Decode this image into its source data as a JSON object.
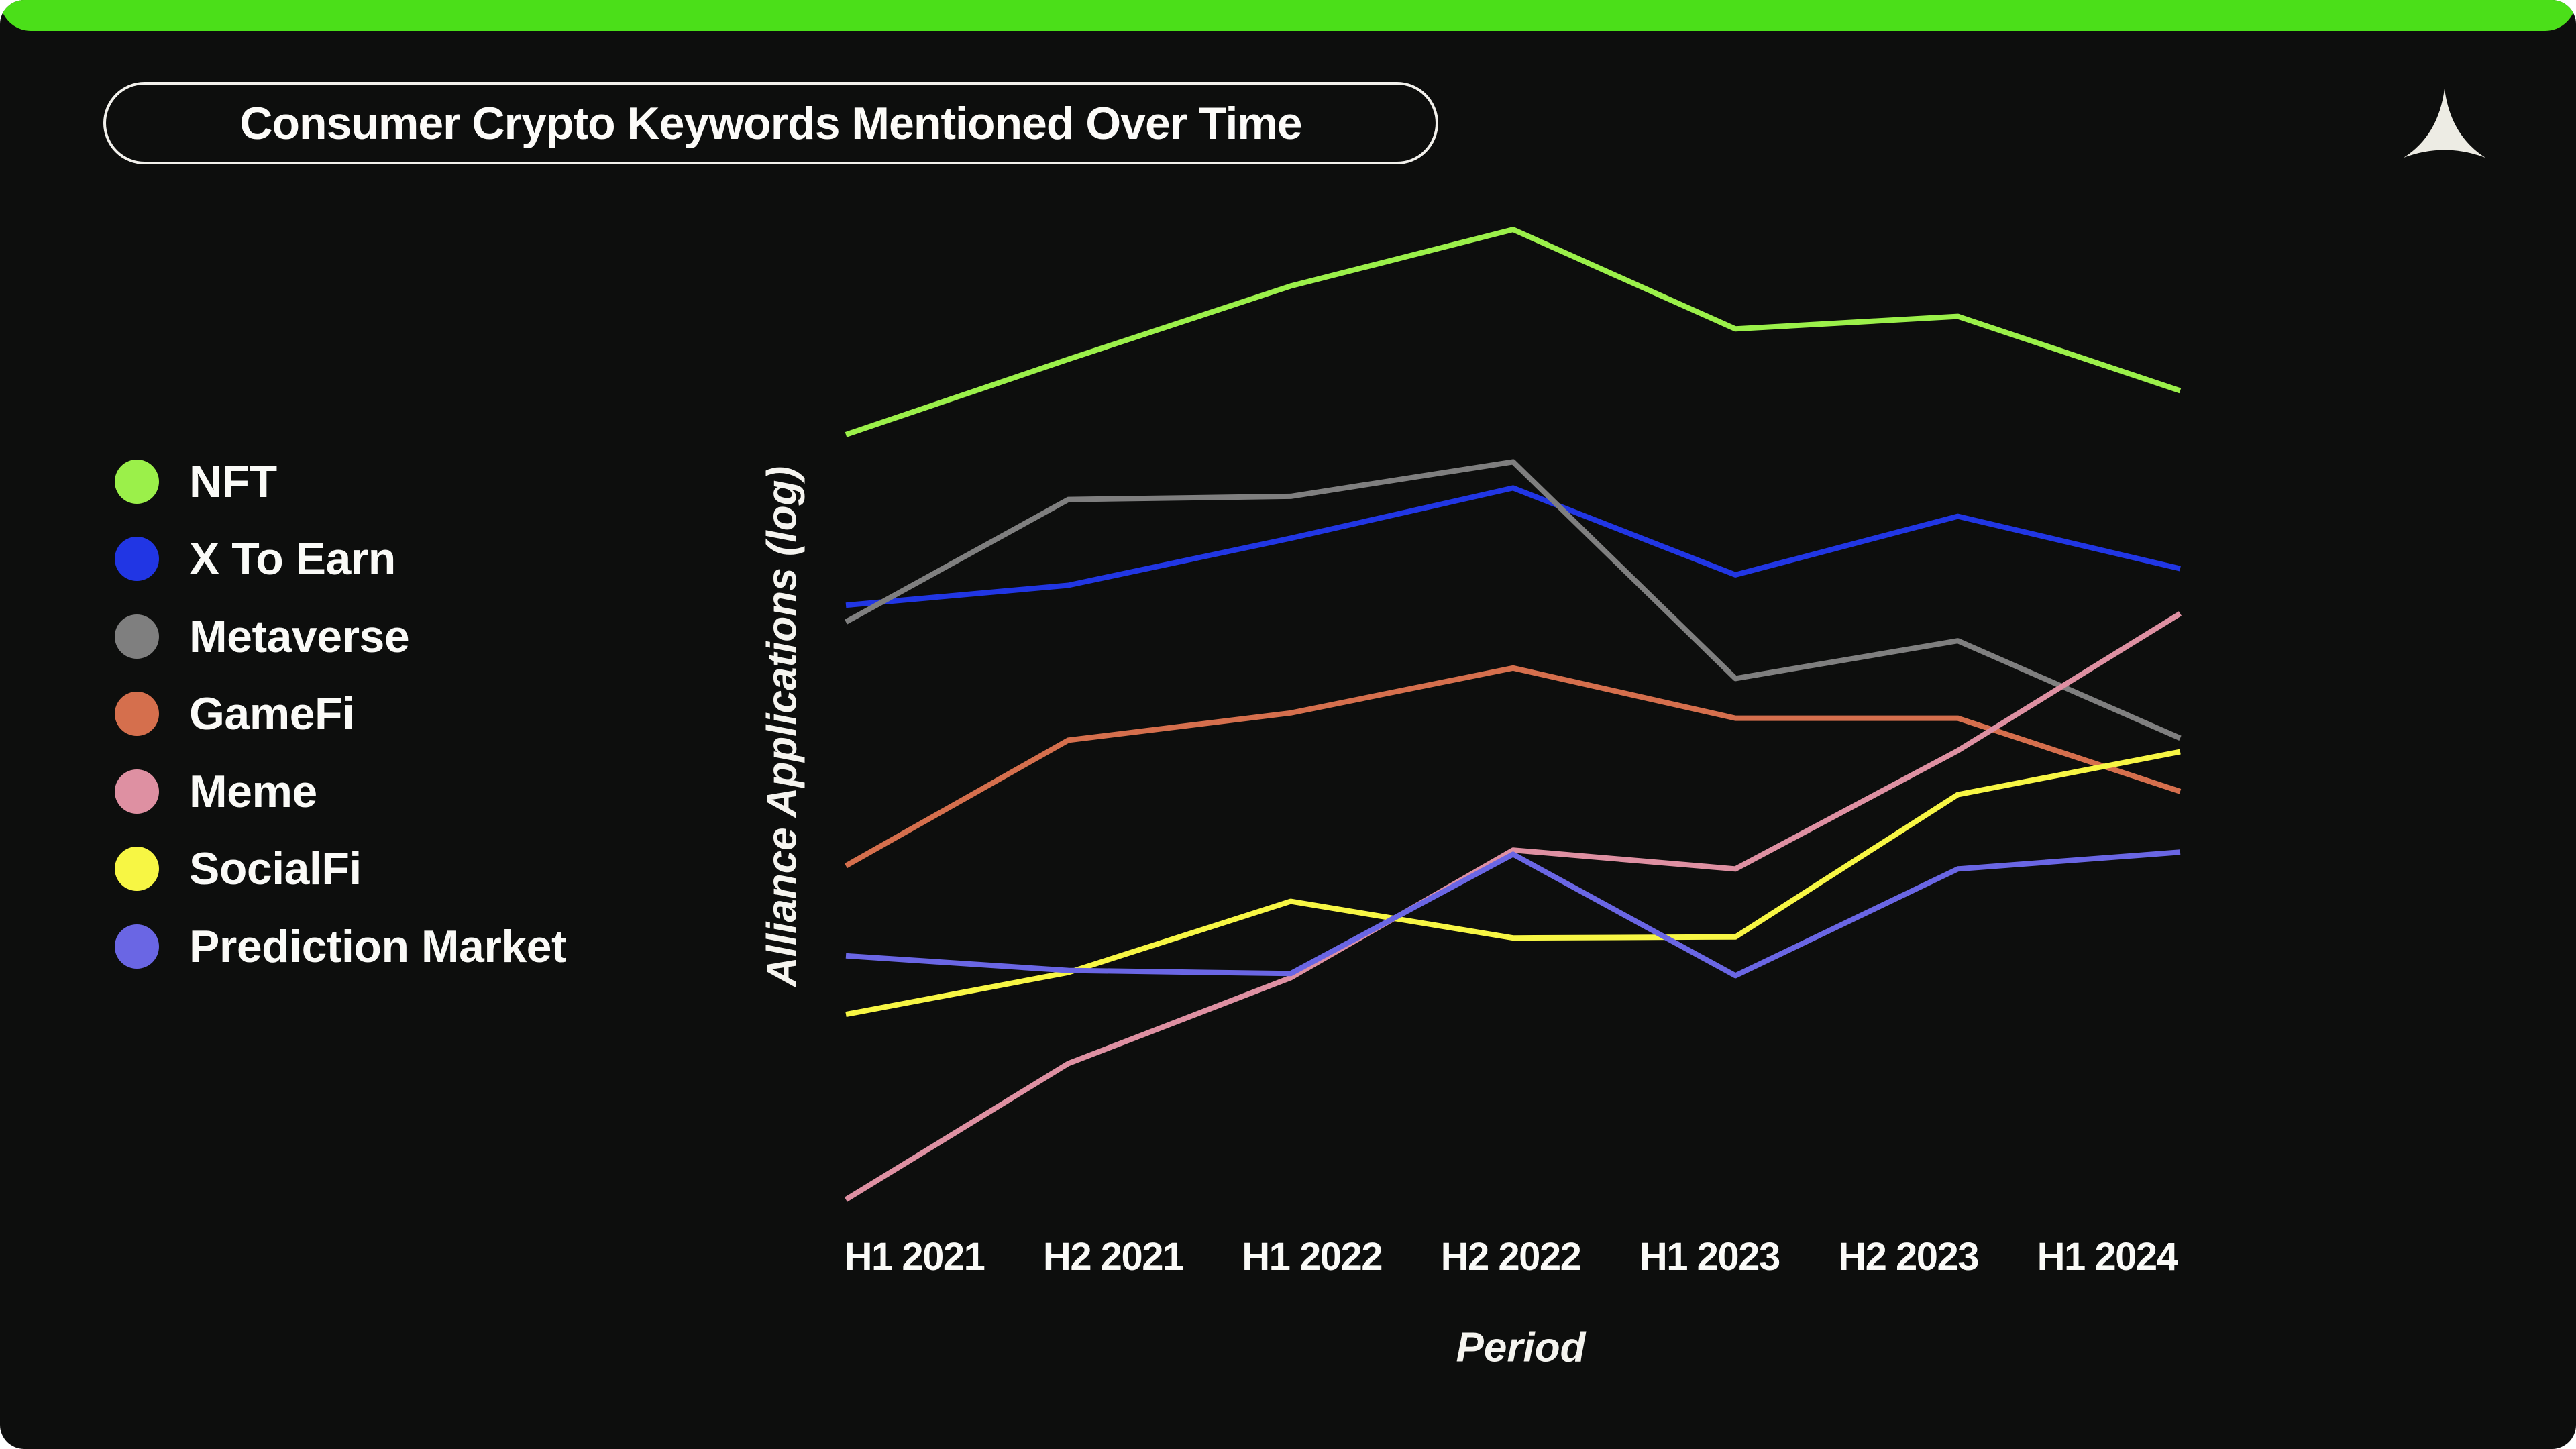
{
  "page": {
    "background_color": "#0d0e0d",
    "top_bar_color": "#4BDF19",
    "logo": "alliance-concave-triangle-logo",
    "logo_color": "#EDECE4"
  },
  "chart_data": {
    "type": "line",
    "title": "Consumer Crypto Keywords Mentioned Over Time",
    "xlabel": "Period",
    "ylabel": "Alliance Applications (log)",
    "categories": [
      "H1 2021",
      "H2 2021",
      "H1 2022",
      "H2 2022",
      "H1 2023",
      "H2 2023",
      "H1 2024"
    ],
    "y_axis_note": "log scale, no numeric tick labels shown; values below are relative heights 0-100 read from pixels",
    "ylim": [
      0,
      100
    ],
    "grid": false,
    "legend_position": "left",
    "series": [
      {
        "name": "NFT",
        "color": "#9BF04A",
        "values": [
          77.7,
          84.9,
          91.9,
          97.3,
          87.8,
          89.0,
          81.9
        ]
      },
      {
        "name": "X To Earn",
        "color": "#2136E4",
        "values": [
          61.4,
          63.3,
          67.8,
          72.6,
          64.3,
          69.9,
          64.9
        ]
      },
      {
        "name": "Metaverse",
        "color": "#7F7F7F",
        "values": [
          59.8,
          71.5,
          71.8,
          75.1,
          54.4,
          58.0,
          48.7
        ]
      },
      {
        "name": "GameFi",
        "color": "#D56F4D",
        "values": [
          36.5,
          48.5,
          51.1,
          55.4,
          50.6,
          50.6,
          43.6
        ]
      },
      {
        "name": "Meme",
        "color": "#DE90A2",
        "values": [
          4.6,
          17.6,
          25.8,
          38.0,
          36.2,
          47.5,
          60.6
        ]
      },
      {
        "name": "SocialFi",
        "color": "#F7F644",
        "values": [
          22.3,
          26.3,
          33.1,
          29.6,
          29.7,
          43.3,
          47.4
        ]
      },
      {
        "name": "Prediction Market",
        "color": "#6A66E4",
        "values": [
          27.9,
          26.5,
          26.2,
          37.6,
          26.0,
          36.2,
          37.8
        ]
      }
    ]
  }
}
